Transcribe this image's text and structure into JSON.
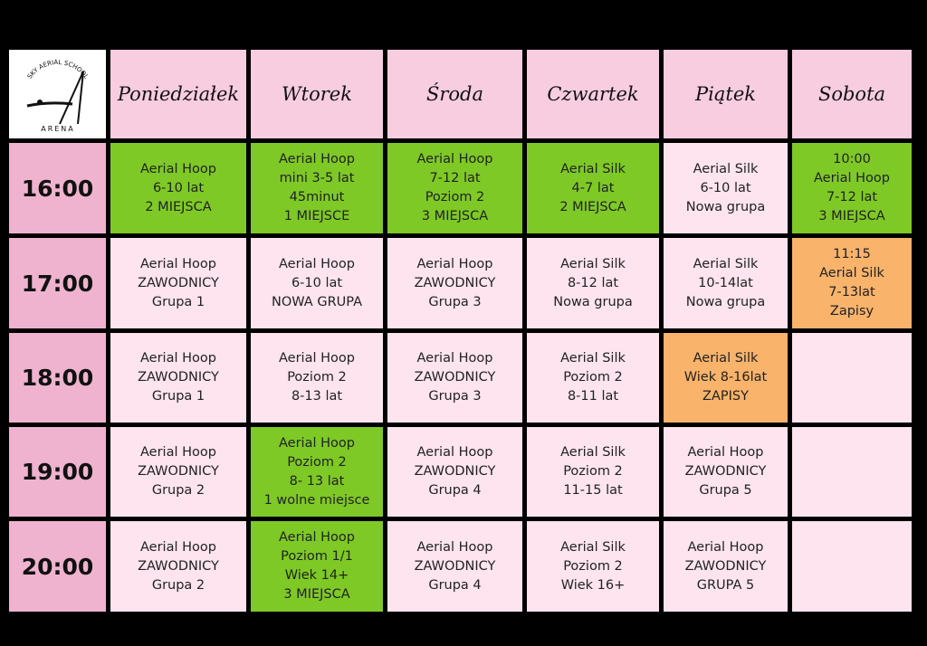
{
  "logo": {
    "top": "SKY AERIAL SCHOOL",
    "bottom": "ARENA"
  },
  "days": [
    "Poniedziałek",
    "Wtorek",
    "Środa",
    "Czwartek",
    "Piątek",
    "Sobota"
  ],
  "rows": [
    {
      "time": "16:00",
      "cells": [
        {
          "lines": [
            "Aerial Hoop",
            "6-10 lat",
            "2 MIEJSCA"
          ],
          "color": "#7ec926"
        },
        {
          "lines": [
            "Aerial Hoop",
            "mini 3-5 lat",
            "45minut",
            "1 MIEJSCE"
          ],
          "color": "#7ec926"
        },
        {
          "lines": [
            "Aerial Hoop",
            "7-12 lat",
            "Poziom 2",
            "3 MIEJSCA"
          ],
          "color": "#7ec926"
        },
        {
          "lines": [
            "Aerial Silk",
            "4-7 lat",
            "2 MIEJSCA"
          ],
          "color": "#7ec926"
        },
        {
          "lines": [
            "Aerial Silk",
            "6-10 lat",
            "Nowa grupa"
          ],
          "color": "#fde4ef"
        },
        {
          "lines": [
            "10:00",
            "Aerial Hoop",
            "7-12 lat",
            "3 MIEJSCA"
          ],
          "color": "#7ec926"
        }
      ]
    },
    {
      "time": "17:00",
      "cells": [
        {
          "lines": [
            "Aerial Hoop",
            "ZAWODNICY",
            "Grupa 1"
          ],
          "color": "#fde4ef"
        },
        {
          "lines": [
            "Aerial Hoop",
            "6-10 lat",
            "NOWA GRUPA"
          ],
          "color": "#fde4ef"
        },
        {
          "lines": [
            "Aerial Hoop",
            "ZAWODNICY",
            "Grupa 3"
          ],
          "color": "#fde4ef"
        },
        {
          "lines": [
            "Aerial Silk",
            "8-12 lat",
            "Nowa grupa"
          ],
          "color": "#fde4ef"
        },
        {
          "lines": [
            "Aerial Silk",
            "10-14lat",
            "Nowa grupa"
          ],
          "color": "#fde4ef"
        },
        {
          "lines": [
            "11:15",
            "Aerial Silk",
            "7-13lat",
            "Zapisy"
          ],
          "color": "#f9b36b"
        }
      ]
    },
    {
      "time": "18:00",
      "cells": [
        {
          "lines": [
            "Aerial Hoop",
            "ZAWODNICY",
            "Grupa 1"
          ],
          "color": "#fde4ef"
        },
        {
          "lines": [
            "Aerial Hoop",
            "Poziom 2",
            "8-13 lat"
          ],
          "color": "#fde4ef"
        },
        {
          "lines": [
            "Aerial Hoop",
            "ZAWODNICY",
            "Grupa 3"
          ],
          "color": "#fde4ef"
        },
        {
          "lines": [
            "Aerial Silk",
            "Poziom 2",
            "8-11 lat"
          ],
          "color": "#fde4ef"
        },
        {
          "lines": [
            "Aerial Silk",
            "Wiek 8-16lat",
            "ZAPISY"
          ],
          "color": "#f9b36b"
        },
        {
          "lines": [],
          "color": "#fde4ef"
        }
      ]
    },
    {
      "time": "19:00",
      "cells": [
        {
          "lines": [
            "Aerial Hoop",
            "ZAWODNICY",
            "Grupa 2"
          ],
          "color": "#fde4ef"
        },
        {
          "lines": [
            "Aerial Hoop",
            "Poziom 2",
            "8- 13 lat",
            "1 wolne miejsce"
          ],
          "color": "#7ec926"
        },
        {
          "lines": [
            "Aerial Hoop",
            "ZAWODNICY",
            "Grupa 4"
          ],
          "color": "#fde4ef"
        },
        {
          "lines": [
            "Aerial Silk",
            "Poziom 2",
            "11-15 lat"
          ],
          "color": "#fde4ef"
        },
        {
          "lines": [
            "Aerial Hoop",
            "ZAWODNICY",
            "Grupa 5"
          ],
          "color": "#fde4ef"
        },
        {
          "lines": [],
          "color": "#fde4ef"
        }
      ]
    },
    {
      "time": "20:00",
      "cells": [
        {
          "lines": [
            "Aerial Hoop",
            "ZAWODNICY",
            "Grupa 2"
          ],
          "color": "#fde4ef"
        },
        {
          "lines": [
            "Aerial Hoop",
            "Poziom 1/1",
            "Wiek 14+",
            "3 MIEJSCA"
          ],
          "color": "#7ec926"
        },
        {
          "lines": [
            "Aerial Hoop",
            "ZAWODNICY",
            "Grupa 4"
          ],
          "color": "#fde4ef"
        },
        {
          "lines": [
            "Aerial Silk",
            "Poziom 2",
            "Wiek 16+"
          ],
          "color": "#fde4ef"
        },
        {
          "lines": [
            "Aerial Hoop",
            "ZAWODNICY",
            "GRUPA 5"
          ],
          "color": "#fde4ef"
        },
        {
          "lines": [],
          "color": "#fde4ef"
        }
      ]
    }
  ]
}
